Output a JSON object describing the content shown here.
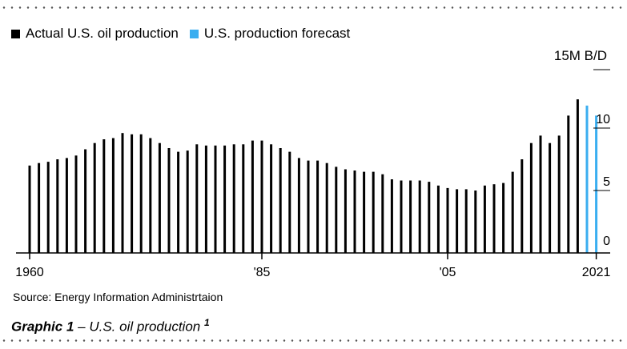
{
  "legend": {
    "actual_label": "Actual U.S. oil production",
    "forecast_label": "U.S. production forecast"
  },
  "colors": {
    "actual": "#000000",
    "forecast": "#3aaef0"
  },
  "source": "Source: Energy Information Administrtaion",
  "caption": {
    "bold": "Graphic 1",
    "rest": " – U.S. oil production ",
    "superscript": "1"
  },
  "chart_data": {
    "type": "bar",
    "unit_label": "15M B/D",
    "y_ticks": [
      "10",
      "5",
      "0"
    ],
    "y_tick_values": [
      10,
      5,
      0
    ],
    "ylim": [
      0,
      15
    ],
    "x_tick_labels": [
      {
        "label": "1960",
        "year": 1960
      },
      {
        "label": "'85",
        "year": 1985
      },
      {
        "label": "'05",
        "year": 2005
      },
      {
        "label": "2021",
        "year": 2021
      }
    ],
    "series": [
      {
        "name": "Actual U.S. oil production",
        "color": "#000000",
        "x": [
          1960,
          1961,
          1962,
          1963,
          1964,
          1965,
          1966,
          1967,
          1968,
          1969,
          1970,
          1971,
          1972,
          1973,
          1974,
          1975,
          1976,
          1977,
          1978,
          1979,
          1980,
          1981,
          1982,
          1983,
          1984,
          1985,
          1986,
          1987,
          1988,
          1989,
          1990,
          1991,
          1992,
          1993,
          1994,
          1995,
          1996,
          1997,
          1998,
          1999,
          2000,
          2001,
          2002,
          2003,
          2004,
          2005,
          2006,
          2007,
          2008,
          2009,
          2010,
          2011,
          2012,
          2013,
          2014,
          2015,
          2016,
          2017,
          2018,
          2019
        ],
        "values": [
          7.0,
          7.2,
          7.3,
          7.5,
          7.6,
          7.8,
          8.3,
          8.8,
          9.1,
          9.2,
          9.6,
          9.5,
          9.5,
          9.2,
          8.8,
          8.4,
          8.1,
          8.2,
          8.7,
          8.6,
          8.6,
          8.6,
          8.7,
          8.7,
          9.0,
          9.0,
          8.7,
          8.4,
          8.1,
          7.6,
          7.4,
          7.4,
          7.2,
          6.9,
          6.7,
          6.6,
          6.5,
          6.5,
          6.3,
          5.9,
          5.8,
          5.8,
          5.8,
          5.7,
          5.4,
          5.2,
          5.1,
          5.1,
          5.0,
          5.4,
          5.5,
          5.6,
          6.5,
          7.5,
          8.8,
          9.4,
          8.8,
          9.4,
          11.0,
          12.3
        ]
      },
      {
        "name": "U.S. production forecast",
        "color": "#3aaef0",
        "x": [
          2020,
          2021
        ],
        "values": [
          11.8,
          11.0
        ]
      }
    ],
    "grid": false,
    "legend_position": "top-left"
  }
}
